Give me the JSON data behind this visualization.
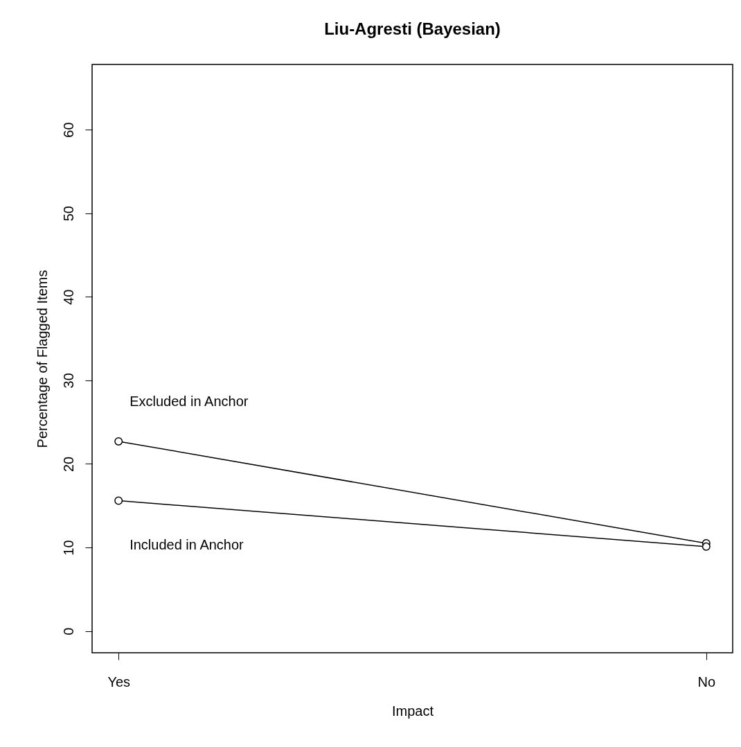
{
  "chart_data": {
    "type": "line",
    "title": "Liu-Agresti (Bayesian)",
    "xlabel": "Impact",
    "ylabel": "Percentage of Flagged Items",
    "categories": [
      "Yes",
      "No"
    ],
    "series": [
      {
        "name": "Excluded in Anchor",
        "color": "#000000",
        "values": [
          22.7,
          10.5
        ]
      },
      {
        "name": "Included in Anchor",
        "color": "#000000",
        "values": [
          15.6,
          10.1
        ]
      }
    ],
    "ylim": [
      -2.6,
      67.8
    ],
    "yticks": [
      0,
      10,
      20,
      30,
      40,
      50,
      60
    ],
    "grid": false,
    "marker": "circle",
    "line_style": "solid"
  }
}
